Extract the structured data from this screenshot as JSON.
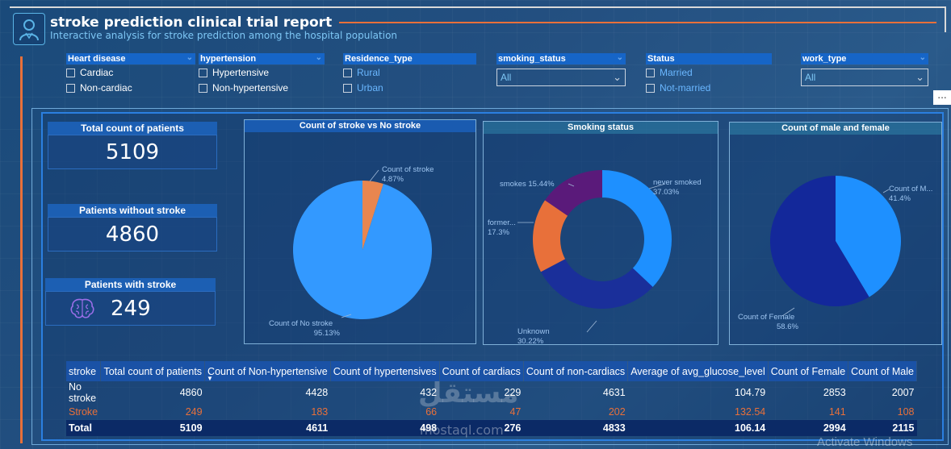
{
  "header": {
    "title": "stroke prediction clinical trial report",
    "subtitle": "Interactive analysis for stroke prediction among the hospital population"
  },
  "slicers": {
    "heart_disease": {
      "label": "Heart disease",
      "options": [
        "Cardiac",
        "Non-cardiac"
      ]
    },
    "hypertension": {
      "label": "hypertension",
      "options": [
        "Hypertensive",
        "Non-hypertensive"
      ]
    },
    "residence": {
      "label": "Residence_type",
      "options": [
        "Rural",
        "Urban"
      ]
    },
    "smoking": {
      "label": "smoking_status",
      "value": "All"
    },
    "status": {
      "label": "Status",
      "options": [
        "Married",
        "Not-married"
      ]
    },
    "work_type": {
      "label": "work_type",
      "value": "All"
    }
  },
  "more_options": "...",
  "kpis": {
    "total": {
      "label": "Total count of patients",
      "value": "5109"
    },
    "without": {
      "label": "Patients without stroke",
      "value": "4860"
    },
    "with": {
      "label": "Patients with stroke",
      "value": "249"
    }
  },
  "chart_data": [
    {
      "type": "pie",
      "title": "Count of stroke vs No stroke",
      "slices": [
        {
          "label": "Count of stroke",
          "value": 4.87,
          "display": "4.87%",
          "color": "#e8864f"
        },
        {
          "label": "Count of No stroke",
          "value": 95.13,
          "display": "95.13%",
          "color": "#3399ff"
        }
      ]
    },
    {
      "type": "pie",
      "title": "Smoking status",
      "donut": true,
      "slices": [
        {
          "label": "never smoked",
          "value": 37.03,
          "display": "37.03%",
          "color": "#1e90ff"
        },
        {
          "label": "Unknown",
          "value": 30.22,
          "display": "30.22%",
          "color": "#1a2f9a"
        },
        {
          "label": "former...",
          "value": 17.3,
          "display": "17.3%",
          "color": "#e8703a"
        },
        {
          "label": "smokes",
          "value": 15.44,
          "display": "15.44%",
          "color": "#5a1a7a"
        }
      ]
    },
    {
      "type": "pie",
      "title": "Count of male and female",
      "slices": [
        {
          "label": "Count of M...",
          "value": 41.4,
          "display": "41.4%",
          "color": "#1e90ff"
        },
        {
          "label": "Count of Female",
          "value": 58.6,
          "display": "58.6%",
          "color": "#13289a"
        }
      ]
    }
  ],
  "table": {
    "columns": [
      "stroke",
      "Total count of patients",
      "Count of Non-hypertensive",
      "Count of hypertensives",
      "Count of cardiacs",
      "Count of non-cardiacs",
      "Average of avg_glucose_level",
      "Count of Female",
      "Count of Male"
    ],
    "rows": [
      [
        "No stroke",
        "4860",
        "4428",
        "432",
        "229",
        "4631",
        "104.79",
        "2853",
        "2007"
      ],
      [
        "Stroke",
        "249",
        "183",
        "66",
        "47",
        "202",
        "132.54",
        "141",
        "108"
      ]
    ],
    "total": [
      "Total",
      "5109",
      "4611",
      "498",
      "276",
      "4833",
      "106.14",
      "2994",
      "2115"
    ]
  },
  "watermark": {
    "text": "مستقل",
    "sub": "mostaql.com"
  },
  "os_notice": "Activate Windows"
}
